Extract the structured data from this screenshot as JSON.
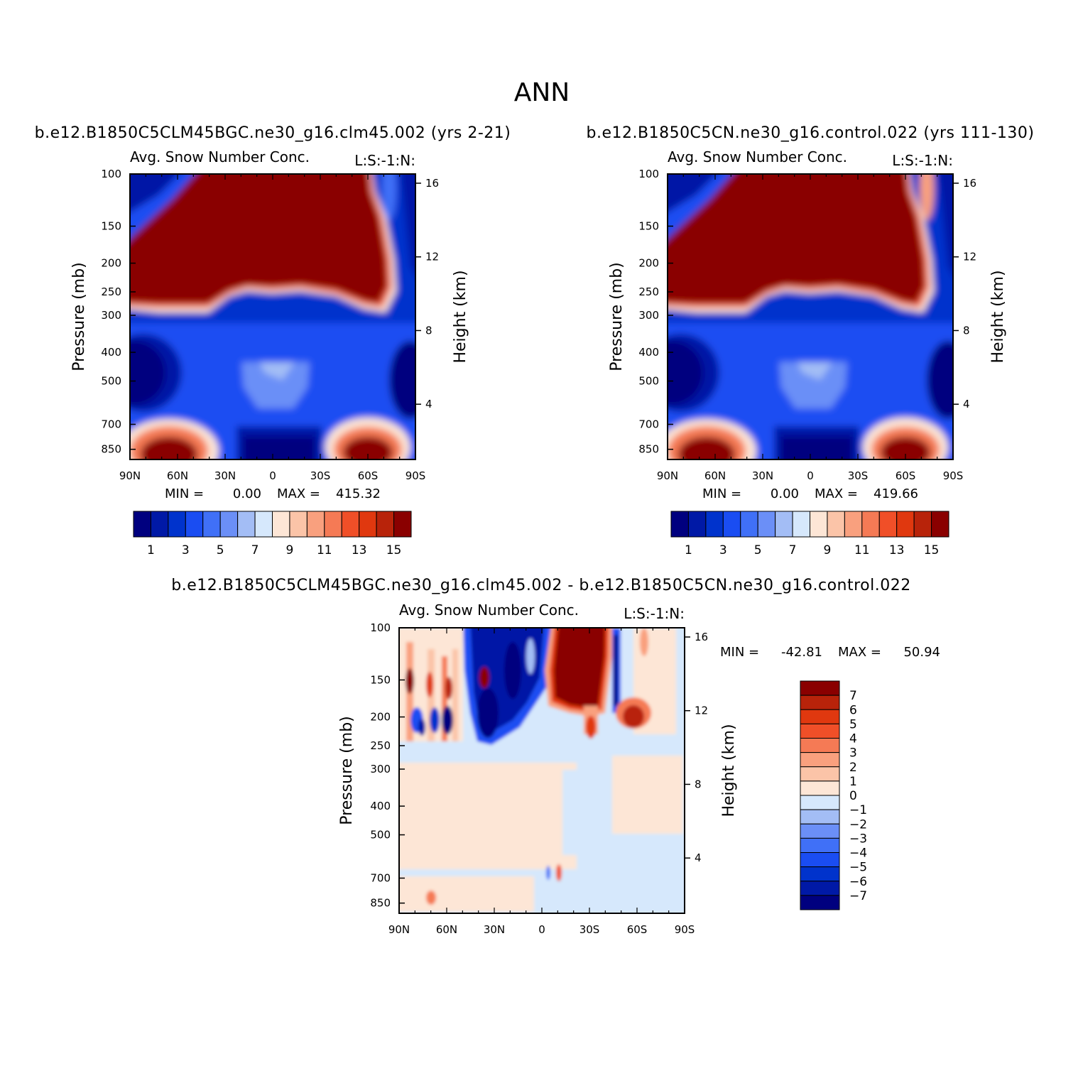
{
  "page": {
    "title": "ANN"
  },
  "colors": {
    "panel_scale": [
      "#00007f",
      "#0019a6",
      "#0033cc",
      "#1a4df2",
      "#4070f7",
      "#6b8ff7",
      "#a3bdf5",
      "#d6e8fc",
      "#fde6d6",
      "#fbc4a8",
      "#f9a07e",
      "#f57a55",
      "#f04f28",
      "#e0380f",
      "#b8230a",
      "#8a0000"
    ],
    "diff_scale": [
      "#8a0000",
      "#b8230a",
      "#e0380f",
      "#f04f28",
      "#f57a55",
      "#f9a07e",
      "#fbc4a8",
      "#fde6d6",
      "#d6e8fc",
      "#a3bdf5",
      "#6b8ff7",
      "#4070f7",
      "#1a4df2",
      "#0033cc",
      "#0019a6",
      "#00007f"
    ]
  },
  "chart_data": [
    {
      "type": "heatmap",
      "case_title": "b.e12.B1850C5CLM45BGC.ne30_g16.clm45.002 (yrs 2-21)",
      "title": "Avg. Snow Number Conc.",
      "subtitle": "L:S:-1:N:",
      "xlabel": "",
      "ylabel": "Pressure (mb)",
      "ylabel_right": "Height (km)",
      "x_ticks": [
        "90N",
        "60N",
        "30N",
        "0",
        "30S",
        "60S",
        "90S"
      ],
      "y_ticks": [
        100,
        150,
        200,
        250,
        300,
        400,
        500,
        700,
        850
      ],
      "y_ticks_right": [
        16,
        12,
        8,
        4
      ],
      "min_label": "MIN =",
      "min_value": "0.00",
      "max_label": "MAX =",
      "max_value": "415.32",
      "colorbar_ticks": [
        1,
        3,
        5,
        7,
        9,
        11,
        13,
        15
      ]
    },
    {
      "type": "heatmap",
      "case_title": "b.e12.B1850C5CN.ne30_g16.control.022 (yrs 111-130)",
      "title": "Avg. Snow Number Conc.",
      "subtitle": "L:S:-1:N:",
      "xlabel": "",
      "ylabel": "Pressure (mb)",
      "ylabel_right": "Height (km)",
      "x_ticks": [
        "90N",
        "60N",
        "30N",
        "0",
        "30S",
        "60S",
        "90S"
      ],
      "y_ticks": [
        100,
        150,
        200,
        250,
        300,
        400,
        500,
        700,
        850
      ],
      "y_ticks_right": [
        16,
        12,
        8,
        4
      ],
      "min_label": "MIN =",
      "min_value": "0.00",
      "max_label": "MAX =",
      "max_value": "419.66",
      "colorbar_ticks": [
        1,
        3,
        5,
        7,
        9,
        11,
        13,
        15
      ]
    },
    {
      "type": "heatmap",
      "case_title": "b.e12.B1850C5CLM45BGC.ne30_g16.clm45.002 - b.e12.B1850C5CN.ne30_g16.control.022",
      "title": "Avg. Snow Number Conc.",
      "subtitle": "L:S:-1:N:",
      "xlabel": "",
      "ylabel": "Pressure (mb)",
      "ylabel_right": "Height (km)",
      "x_ticks": [
        "90N",
        "60N",
        "30N",
        "0",
        "30S",
        "60S",
        "90S"
      ],
      "y_ticks": [
        100,
        150,
        200,
        250,
        300,
        400,
        500,
        700,
        850
      ],
      "y_ticks_right": [
        16,
        12,
        8,
        4
      ],
      "min_label": "MIN =",
      "min_value": "-42.81",
      "max_label": "MAX =",
      "max_value": "50.94",
      "colorbar_ticks": [
        7,
        6,
        5,
        4,
        3,
        2,
        1,
        0,
        -1,
        -2,
        -3,
        -4,
        -5,
        -6,
        -7
      ]
    }
  ]
}
